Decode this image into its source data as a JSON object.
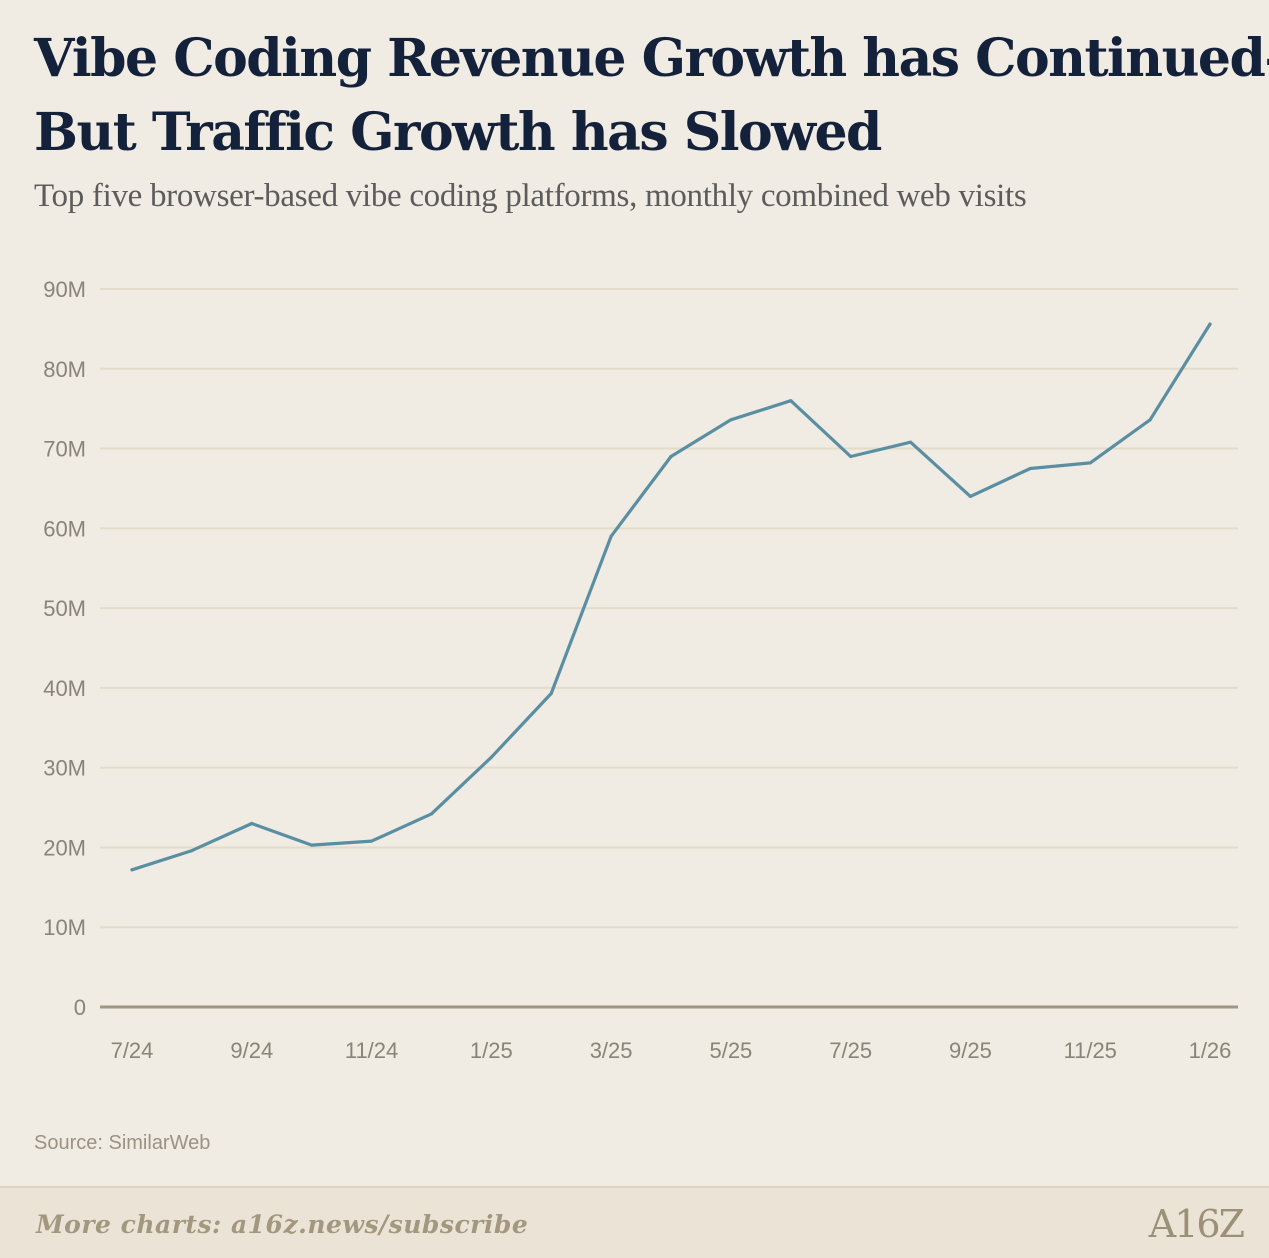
{
  "header": {
    "title_line1": "Vibe Coding Revenue Growth has Continued—",
    "title_line2": "But Traffic Growth has Slowed",
    "subtitle": "Top five browser-based vibe coding platforms, monthly combined web visits"
  },
  "source": "Source: SimilarWeb",
  "footer": {
    "link_text": "More charts: a16z.news/subscribe",
    "logo_text": "A16Z"
  },
  "colors": {
    "line": "#5a8fa3",
    "grid": "#e2dcc8",
    "axis": "#a09682",
    "tick": "#8a8478"
  },
  "chart_data": {
    "type": "line",
    "title": "Vibe Coding Revenue Growth has Continued— But Traffic Growth has Slowed",
    "subtitle": "Top five browser-based vibe coding platforms, monthly combined web visits",
    "xlabel": "",
    "ylabel": "",
    "ylim": [
      0,
      90000000
    ],
    "y_ticks": [
      0,
      10000000,
      20000000,
      30000000,
      40000000,
      50000000,
      60000000,
      70000000,
      80000000,
      90000000
    ],
    "y_tick_labels": [
      "0",
      "10M",
      "20M",
      "30M",
      "40M",
      "50M",
      "60M",
      "70M",
      "80M",
      "90M"
    ],
    "x_tick_labels": [
      "7/24",
      "9/24",
      "11/24",
      "1/25",
      "3/25",
      "5/25",
      "7/25",
      "9/25",
      "11/25",
      "1/26"
    ],
    "x": [
      "7/24",
      "8/24",
      "9/24",
      "10/24",
      "11/24",
      "12/24",
      "1/25",
      "2/25",
      "3/25",
      "4/25",
      "5/25",
      "6/25",
      "7/25",
      "8/25",
      "9/25",
      "10/25",
      "11/25",
      "12/25",
      "1/26"
    ],
    "series": [
      {
        "name": "Monthly combined web visits",
        "values": [
          17200000,
          19600000,
          23000000,
          20300000,
          20800000,
          24200000,
          31300000,
          39300000,
          59000000,
          69000000,
          73600000,
          76000000,
          69000000,
          70800000,
          64000000,
          67500000,
          68200000,
          73600000,
          85600000
        ]
      }
    ],
    "grid": true,
    "legend": "none"
  }
}
